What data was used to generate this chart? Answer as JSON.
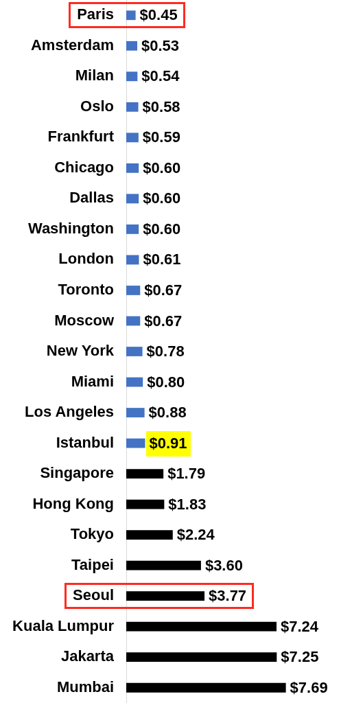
{
  "chart_data": {
    "type": "bar",
    "orientation": "horizontal",
    "tick_labels": "y",
    "categories": [
      "Paris",
      "Amsterdam",
      "Milan",
      "Oslo",
      "Frankfurt",
      "Chicago",
      "Dallas",
      "Washington",
      "London",
      "Toronto",
      "Moscow",
      "New York",
      "Miami",
      "Los Angeles",
      "Istanbul",
      "Singapore",
      "Hong Kong",
      "Tokyo",
      "Taipei",
      "Seoul",
      "Kuala Lumpur",
      "Jakarta",
      "Mumbai"
    ],
    "values": [
      0.45,
      0.53,
      0.54,
      0.58,
      0.59,
      0.6,
      0.6,
      0.6,
      0.61,
      0.67,
      0.67,
      0.78,
      0.8,
      0.88,
      0.91,
      1.79,
      1.83,
      2.24,
      3.6,
      3.77,
      7.24,
      7.25,
      7.69
    ],
    "value_labels": [
      "$0.45",
      "$0.53",
      "$0.54",
      "$0.58",
      "$0.59",
      "$0.60",
      "$0.60",
      "$0.60",
      "$0.61",
      "$0.67",
      "$0.67",
      "$0.78",
      "$0.80",
      "$0.88",
      "$0.91",
      "$1.79",
      "$1.83",
      "$2.24",
      "$3.60",
      "$3.77",
      "$7.24",
      "$7.25",
      "$7.69"
    ],
    "colors": [
      "#4472c4",
      "#4472c4",
      "#4472c4",
      "#4472c4",
      "#4472c4",
      "#4472c4",
      "#4472c4",
      "#4472c4",
      "#4472c4",
      "#4472c4",
      "#4472c4",
      "#4472c4",
      "#4472c4",
      "#4472c4",
      "#4472c4",
      "#000000",
      "#000000",
      "#000000",
      "#000000",
      "#000000",
      "#000000",
      "#000000",
      "#000000"
    ]
  }
}
